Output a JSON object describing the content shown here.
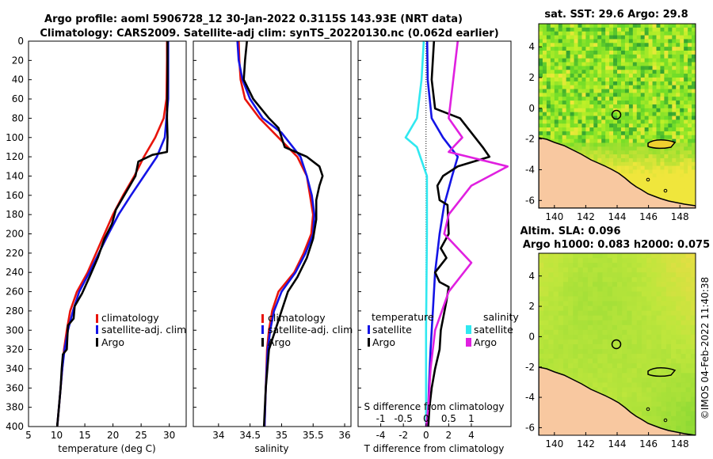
{
  "header": {
    "line1": "Argo profile: aoml 5906728_12 30-Jan-2022 0.3115S 143.93E (NRT data)",
    "line2": "Climatology: CARS2009. Satellite-adj clim: synTS_20220130.nc (0.062d earlier)"
  },
  "colors": {
    "climatology": "#e8140c",
    "satellite": "#1414e6",
    "argo": "#000000",
    "sat_salinity": "#30e8f0",
    "argo_salinity": "#e020e0"
  },
  "chart_data": [
    {
      "type": "line",
      "title": "",
      "xlabel": "temperature (deg C)",
      "ylabel": "",
      "xlim": [
        5,
        33
      ],
      "ylim": [
        400,
        0
      ],
      "xticks": [
        "5",
        "10",
        "15",
        "20",
        "25",
        "30"
      ],
      "yticks": [
        "0",
        "20",
        "40",
        "60",
        "80",
        "100",
        "120",
        "140",
        "160",
        "180",
        "200",
        "220",
        "240",
        "260",
        "280",
        "300",
        "320",
        "340",
        "360",
        "380",
        "400"
      ],
      "legend": [
        "climatology",
        "satellite-adj. clim",
        "Argo"
      ],
      "series": [
        {
          "name": "climatology",
          "color": "#e8140c",
          "points": [
            [
              29.6,
              0
            ],
            [
              29.6,
              20
            ],
            [
              29.5,
              60
            ],
            [
              29.0,
              80
            ],
            [
              27.5,
              100
            ],
            [
              25.5,
              120
            ],
            [
              23.8,
              140
            ],
            [
              21.8,
              160
            ],
            [
              20.0,
              180
            ],
            [
              18.5,
              200
            ],
            [
              17.0,
              220
            ],
            [
              15.5,
              240
            ],
            [
              13.6,
              260
            ],
            [
              12.4,
              280
            ],
            [
              11.8,
              300
            ],
            [
              11.3,
              320
            ],
            [
              11.0,
              340
            ],
            [
              10.7,
              360
            ],
            [
              10.4,
              380
            ],
            [
              10.1,
              400
            ]
          ]
        },
        {
          "name": "satellite-adj. clim",
          "color": "#1414e6",
          "points": [
            [
              29.8,
              0
            ],
            [
              29.8,
              20
            ],
            [
              29.8,
              60
            ],
            [
              29.5,
              80
            ],
            [
              29.2,
              100
            ],
            [
              27.8,
              120
            ],
            [
              25.5,
              140
            ],
            [
              23.2,
              160
            ],
            [
              21.0,
              180
            ],
            [
              19.2,
              200
            ],
            [
              17.5,
              220
            ],
            [
              15.8,
              240
            ],
            [
              14.0,
              260
            ],
            [
              12.9,
              280
            ],
            [
              12.0,
              300
            ],
            [
              11.4,
              320
            ],
            [
              11.0,
              340
            ],
            [
              10.7,
              360
            ],
            [
              10.4,
              380
            ],
            [
              10.1,
              400
            ]
          ]
        },
        {
          "name": "Argo",
          "color": "#000000",
          "points": [
            [
              29.7,
              0
            ],
            [
              29.7,
              40
            ],
            [
              29.6,
              80
            ],
            [
              29.7,
              100
            ],
            [
              29.6,
              115
            ],
            [
              27.0,
              118
            ],
            [
              24.5,
              125
            ],
            [
              24.0,
              140
            ],
            [
              22.0,
              160
            ],
            [
              20.5,
              175
            ],
            [
              19.8,
              190
            ],
            [
              18.5,
              205
            ],
            [
              17.3,
              225
            ],
            [
              15.8,
              245
            ],
            [
              14.5,
              262
            ],
            [
              13.2,
              275
            ],
            [
              13.0,
              288
            ],
            [
              12.0,
              295
            ],
            [
              11.8,
              320
            ],
            [
              11.1,
              325
            ],
            [
              10.9,
              340
            ],
            [
              10.7,
              360
            ],
            [
              10.4,
              380
            ],
            [
              10.1,
              400
            ]
          ]
        }
      ]
    },
    {
      "type": "line",
      "title": "",
      "xlabel": "salinity",
      "ylabel": "",
      "xlim": [
        33.6,
        36.1
      ],
      "ylim": [
        400,
        0
      ],
      "xticks": [
        "34",
        "34.5",
        "35",
        "35.5",
        "36"
      ],
      "legend": [
        "climatology",
        "satellite-adj. clim",
        "Argo"
      ],
      "series": [
        {
          "name": "climatology",
          "color": "#e8140c",
          "points": [
            [
              34.32,
              0
            ],
            [
              34.33,
              20
            ],
            [
              34.35,
              40
            ],
            [
              34.42,
              60
            ],
            [
              34.65,
              80
            ],
            [
              34.95,
              100
            ],
            [
              35.25,
              120
            ],
            [
              35.4,
              140
            ],
            [
              35.45,
              160
            ],
            [
              35.5,
              180
            ],
            [
              35.47,
              200
            ],
            [
              35.35,
              220
            ],
            [
              35.2,
              240
            ],
            [
              34.95,
              260
            ],
            [
              34.85,
              280
            ],
            [
              34.8,
              300
            ],
            [
              34.77,
              320
            ],
            [
              34.75,
              360
            ],
            [
              34.73,
              400
            ]
          ]
        },
        {
          "name": "satellite-adj. clim",
          "color": "#1414e6",
          "points": [
            [
              34.3,
              0
            ],
            [
              34.32,
              20
            ],
            [
              34.38,
              40
            ],
            [
              34.5,
              60
            ],
            [
              34.7,
              80
            ],
            [
              35.0,
              95
            ],
            [
              35.3,
              120
            ],
            [
              35.4,
              140
            ],
            [
              35.48,
              160
            ],
            [
              35.52,
              180
            ],
            [
              35.5,
              200
            ],
            [
              35.38,
              220
            ],
            [
              35.22,
              240
            ],
            [
              35.0,
              260
            ],
            [
              34.88,
              280
            ],
            [
              34.82,
              300
            ],
            [
              34.78,
              320
            ],
            [
              34.75,
              360
            ],
            [
              34.73,
              400
            ]
          ]
        },
        {
          "name": "Argo",
          "color": "#000000",
          "points": [
            [
              34.45,
              0
            ],
            [
              34.42,
              20
            ],
            [
              34.4,
              40
            ],
            [
              34.55,
              60
            ],
            [
              34.8,
              80
            ],
            [
              34.95,
              90
            ],
            [
              35.05,
              110
            ],
            [
              35.4,
              120
            ],
            [
              35.6,
              130
            ],
            [
              35.65,
              140
            ],
            [
              35.6,
              150
            ],
            [
              35.55,
              165
            ],
            [
              35.55,
              185
            ],
            [
              35.5,
              205
            ],
            [
              35.4,
              225
            ],
            [
              35.25,
              245
            ],
            [
              35.1,
              260
            ],
            [
              35.0,
              280
            ],
            [
              34.9,
              300
            ],
            [
              34.8,
              320
            ],
            [
              34.75,
              360
            ],
            [
              34.72,
              400
            ]
          ]
        }
      ]
    },
    {
      "type": "line",
      "title": "",
      "xlabel": "T difference from climatology",
      "xlabel_top": "S difference from climatology",
      "ylabel": "",
      "xlim": [
        -6,
        7.5
      ],
      "ylim": [
        400,
        0
      ],
      "xticks": [
        "-4",
        "-2",
        "0",
        "2",
        "4"
      ],
      "xticks_top": [
        "-1",
        "-0.5",
        "0",
        "0.5",
        "1"
      ],
      "legend_title_left": "temperature",
      "legend_title_right": "salinity",
      "legend_left": [
        "satellite",
        "Argo"
      ],
      "legend_right": [
        "satellite",
        "Argo"
      ],
      "series": [
        {
          "name": "T satellite",
          "color": "#1414e6",
          "points": [
            [
              0.1,
              0
            ],
            [
              0.15,
              40
            ],
            [
              0.5,
              80
            ],
            [
              1.5,
              100
            ],
            [
              2.8,
              120
            ],
            [
              2.3,
              140
            ],
            [
              1.6,
              170
            ],
            [
              1.2,
              200
            ],
            [
              0.8,
              240
            ],
            [
              0.6,
              280
            ],
            [
              0.4,
              320
            ],
            [
              0.25,
              360
            ],
            [
              0.15,
              400
            ]
          ]
        },
        {
          "name": "T Argo",
          "color": "#000000",
          "points": [
            [
              0.7,
              0
            ],
            [
              0.5,
              40
            ],
            [
              0.8,
              70
            ],
            [
              3.0,
              80
            ],
            [
              5.0,
              110
            ],
            [
              5.6,
              120
            ],
            [
              2.8,
              130
            ],
            [
              1.5,
              140
            ],
            [
              1.0,
              150
            ],
            [
              1.2,
              165
            ],
            [
              1.9,
              170
            ],
            [
              2.0,
              200
            ],
            [
              1.3,
              215
            ],
            [
              1.8,
              225
            ],
            [
              0.8,
              240
            ],
            [
              1.2,
              250
            ],
            [
              2.0,
              255
            ],
            [
              1.8,
              270
            ],
            [
              1.3,
              300
            ],
            [
              1.2,
              320
            ],
            [
              0.8,
              340
            ],
            [
              0.5,
              360
            ],
            [
              0.3,
              380
            ],
            [
              0.2,
              400
            ]
          ]
        },
        {
          "name": "S satellite",
          "color": "#30e8f0",
          "points": [
            [
              -0.05,
              0
            ],
            [
              -0.1,
              40
            ],
            [
              -0.2,
              80
            ],
            [
              -0.45,
              100
            ],
            [
              -0.2,
              110
            ],
            [
              0.02,
              140
            ],
            [
              0.02,
              200
            ],
            [
              0.0,
              300
            ],
            [
              0.0,
              400
            ]
          ]
        },
        {
          "name": "S Argo",
          "color": "#e020e0",
          "points": [
            [
              0.7,
              0
            ],
            [
              0.6,
              40
            ],
            [
              0.5,
              80
            ],
            [
              0.8,
              100
            ],
            [
              0.5,
              115
            ],
            [
              1.8,
              130
            ],
            [
              1.0,
              150
            ],
            [
              0.5,
              180
            ],
            [
              0.4,
              200
            ],
            [
              1.0,
              230
            ],
            [
              0.5,
              260
            ],
            [
              0.2,
              300
            ],
            [
              0.1,
              340
            ],
            [
              0.05,
              380
            ],
            [
              0.0,
              400
            ]
          ]
        }
      ]
    },
    {
      "type": "heatmap",
      "title": "sat. SST: 29.6 Argo: 29.8",
      "xlim": [
        139,
        149
      ],
      "ylim": [
        -6.5,
        5.5
      ],
      "xticks": [
        "140",
        "142",
        "144",
        "146",
        "148"
      ],
      "yticks": [
        "4",
        "2",
        "0",
        "-2",
        "-4",
        "-6"
      ],
      "argo_marker": [
        143.93,
        -0.31
      ]
    },
    {
      "type": "heatmap",
      "title_line1": "Altim. SLA: 0.096",
      "title_line2": "Argo h1000: 0.083 h2000: 0.075",
      "xlim": [
        139,
        149
      ],
      "ylim": [
        -6.5,
        5.5
      ],
      "xticks": [
        "140",
        "142",
        "144",
        "146",
        "148"
      ],
      "yticks": [
        "4",
        "2",
        "0",
        "-2",
        "-4",
        "-6"
      ],
      "argo_marker": [
        143.93,
        -0.31
      ]
    }
  ],
  "watermark": "©IMOS 04-Feb-2022 11:40:38"
}
